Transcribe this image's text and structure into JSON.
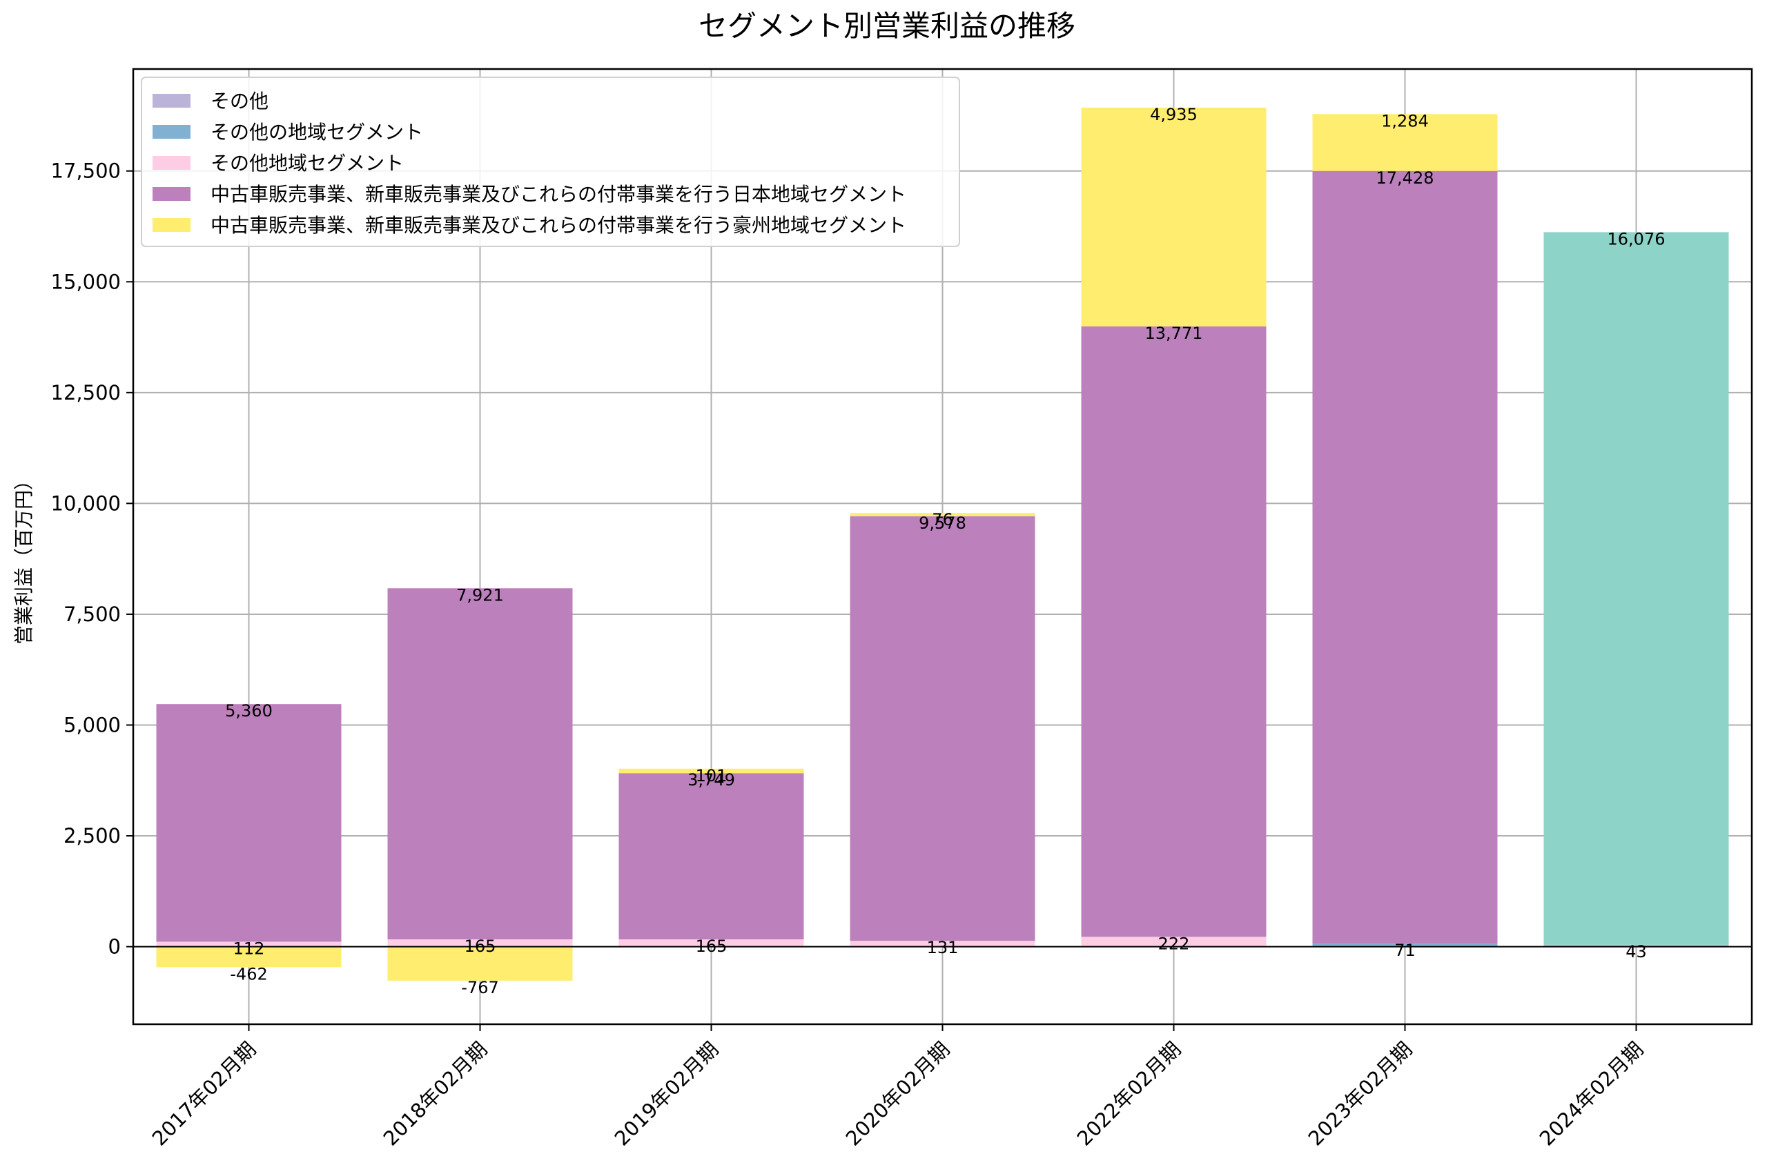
{
  "chart_data": {
    "type": "bar",
    "stacked": true,
    "title": "セグメント別営業利益の推移",
    "ylabel": "営業利益（百万円）",
    "xlabel": "",
    "ylim": [
      -1750,
      19800
    ],
    "yticks": [
      0,
      2500,
      5000,
      7500,
      10000,
      12500,
      15000,
      17500
    ],
    "ytick_labels": [
      "0",
      "2,500",
      "5,000",
      "7,500",
      "10,000",
      "12,500",
      "15,000",
      "17,500"
    ],
    "grid": true,
    "legend_position": "top-left",
    "categories": [
      "2017年02月期",
      "2018年02月期",
      "2019年02月期",
      "2020年02月期",
      "2022年02月期",
      "2023年02月期",
      "2024年02月期"
    ],
    "series": [
      {
        "name": "その他",
        "color": "#bcb4d8",
        "values": [
          null,
          null,
          null,
          null,
          null,
          null,
          43
        ],
        "labels": [
          "",
          "",
          "",
          "",
          "",
          "",
          "43"
        ]
      },
      {
        "name": "その他の地域セグメント",
        "color": "#80b1d3",
        "values": [
          null,
          null,
          null,
          null,
          null,
          71,
          null
        ],
        "labels": [
          "",
          "",
          "",
          "",
          "",
          "71",
          ""
        ]
      },
      {
        "name": "その他地域セグメント",
        "color": "#fccde5",
        "values": [
          112,
          165,
          165,
          131,
          222,
          null,
          null
        ],
        "labels": [
          "112",
          "165",
          "165",
          "131",
          "222",
          "",
          ""
        ]
      },
      {
        "name": "中古車販売事業、新車販売事業及びこれらの付帯事業を行う日本地域セグメント",
        "color": "#bc80bd",
        "values": [
          5360,
          7921,
          3749,
          9578,
          13771,
          17428,
          null
        ],
        "labels": [
          "5,360",
          "7,921",
          "3,749",
          "9,578",
          "13,771",
          "17,428",
          ""
        ]
      },
      {
        "name": "中古車販売事業、新車販売事業及びこれらの付帯事業を行う豪州地域セグメント",
        "color": "#ffed6f",
        "values": [
          -462,
          -767,
          101,
          76,
          4935,
          1284,
          null
        ],
        "labels": [
          "-462",
          "-767",
          "101",
          "76",
          "4,935",
          "1,284",
          ""
        ]
      },
      {
        "name": "",
        "color": "#8dd3c7",
        "values": [
          null,
          null,
          null,
          null,
          null,
          null,
          16076
        ],
        "labels": [
          "",
          "",
          "",
          "",
          "",
          "",
          "16,076"
        ]
      }
    ]
  }
}
